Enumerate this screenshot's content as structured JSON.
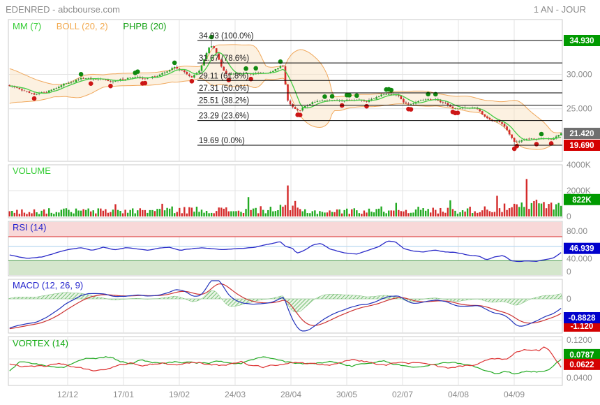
{
  "header": {
    "title": "EDENRED - abcbourse.com",
    "period": "1 AN - JOUR"
  },
  "colors": {
    "up": "#22aa22",
    "down": "#d42a2a",
    "wick": "#666666",
    "ma": "#44cc44",
    "boll_line": "#f0a85c",
    "boll_fill": "#fae3c3",
    "rsi_line": "#2a2ac8",
    "rsi_overbought_zone": "#f8d8d8",
    "rsi_oversold_zone": "#d4e6cc",
    "rsi_line_80": "#dd4444",
    "rsi_line_60": "#b9d9f0",
    "rsi_line_30": "#66aa66",
    "macd_line": "#2233bb",
    "signal_line": "#cc3333",
    "hist": "#57b357",
    "vortex_plus": "#22aa22",
    "vortex_minus": "#dd3333",
    "grid": "#e3e3e3",
    "border": "#c9c9c9",
    "axis_text": "#8c8c8c",
    "fib": "#000000"
  },
  "chart_data": {
    "type": "candlestick-multi-panel",
    "x_axis": {
      "dates": [
        "12/12",
        "17/01",
        "19/02",
        "24/03",
        "28/04",
        "30/05",
        "02/07",
        "04/08",
        "04/09"
      ]
    },
    "main": {
      "legend": [
        {
          "label": "MM (7)",
          "color": "#33cc33"
        },
        {
          "label": "BOLL (20, 2)",
          "color": "#f2a94e"
        },
        {
          "label": "PHPB (20)",
          "color": "#12a112"
        }
      ],
      "fib_levels": [
        {
          "price": 34.93,
          "label": "34.93  (100.0%)"
        },
        {
          "price": 31.67,
          "label": "31.67  (78.6%)"
        },
        {
          "price": 29.11,
          "label": "29.11  (61.8%)"
        },
        {
          "price": 27.31,
          "label": "27.31  (50.0%)"
        },
        {
          "price": 25.51,
          "label": "25.51  (38.2%)"
        },
        {
          "price": 23.29,
          "label": "23.29  (23.6%)"
        },
        {
          "price": 19.69,
          "label": "19.69  (0.0%)"
        }
      ],
      "axis_labels": [
        {
          "value": 35.0,
          "text": "35.000"
        },
        {
          "value": 30.0,
          "text": "30.000"
        },
        {
          "value": 25.0,
          "text": "25.000"
        }
      ],
      "badges": [
        {
          "text": "34.930",
          "value": 34.93,
          "bg": "#009a00"
        },
        {
          "text": "21.420",
          "value": 21.42,
          "bg": "#6f6f6f"
        },
        {
          "text": "19.690",
          "value": 19.69,
          "bg": "#d40000"
        }
      ],
      "last_price": 21.42,
      "price_keypoints": [
        [
          0,
          28.3
        ],
        [
          0.02,
          27.8
        ],
        [
          0.045,
          26.9
        ],
        [
          0.07,
          27.6
        ],
        [
          0.1,
          28.6
        ],
        [
          0.13,
          29.4
        ],
        [
          0.16,
          29.2
        ],
        [
          0.19,
          29.0
        ],
        [
          0.22,
          29.6
        ],
        [
          0.25,
          29.4
        ],
        [
          0.28,
          30.2
        ],
        [
          0.3,
          31.1
        ],
        [
          0.315,
          30.4
        ],
        [
          0.33,
          29.6
        ],
        [
          0.345,
          30.5
        ],
        [
          0.36,
          33.8
        ],
        [
          0.368,
          34.2
        ],
        [
          0.375,
          33.0
        ],
        [
          0.385,
          31.0
        ],
        [
          0.395,
          30.0
        ],
        [
          0.41,
          30.3
        ],
        [
          0.44,
          30.1
        ],
        [
          0.47,
          30.3
        ],
        [
          0.485,
          30.8
        ],
        [
          0.495,
          31.3
        ],
        [
          0.505,
          25.9
        ],
        [
          0.515,
          25.0
        ],
        [
          0.525,
          24.6
        ],
        [
          0.535,
          25.3
        ],
        [
          0.55,
          26.0
        ],
        [
          0.565,
          26.3
        ],
        [
          0.6,
          26.1
        ],
        [
          0.615,
          26.4
        ],
        [
          0.63,
          26.2
        ],
        [
          0.645,
          26.0
        ],
        [
          0.66,
          26.5
        ],
        [
          0.675,
          27.2
        ],
        [
          0.69,
          27.3
        ],
        [
          0.705,
          26.9
        ],
        [
          0.715,
          26.0
        ],
        [
          0.73,
          25.6
        ],
        [
          0.745,
          26.1
        ],
        [
          0.76,
          26.4
        ],
        [
          0.775,
          26.2
        ],
        [
          0.79,
          25.8
        ],
        [
          0.805,
          25.0
        ],
        [
          0.82,
          25.2
        ],
        [
          0.835,
          25.1
        ],
        [
          0.85,
          24.8
        ],
        [
          0.862,
          23.9
        ],
        [
          0.875,
          23.3
        ],
        [
          0.89,
          23.0
        ],
        [
          0.9,
          22.3
        ],
        [
          0.905,
          21.5
        ],
        [
          0.915,
          20.2
        ],
        [
          0.925,
          20.3
        ],
        [
          0.94,
          20.6
        ],
        [
          0.955,
          20.5
        ],
        [
          0.97,
          20.8
        ],
        [
          0.985,
          20.7
        ],
        [
          1,
          21.42
        ]
      ],
      "wick_overrides": [
        {
          "t": 0.364,
          "high": 34.93
        },
        {
          "t": 0.915,
          "low": 19.69
        }
      ]
    },
    "volume": {
      "title": "VOLUME",
      "title_color": "#33cc33",
      "axis_labels": [
        {
          "value": 4000,
          "text": "4000K"
        },
        {
          "value": 2000,
          "text": "2000K"
        },
        {
          "value": 0,
          "text": "0"
        }
      ],
      "badge": {
        "text": "822K",
        "value": 822,
        "bg": "#009a00"
      },
      "last_volume": 822,
      "base_keypoints": [
        [
          0,
          380
        ],
        [
          0.1,
          430
        ],
        [
          0.2,
          420
        ],
        [
          0.28,
          500
        ],
        [
          0.36,
          520
        ],
        [
          0.42,
          450
        ],
        [
          0.5,
          600
        ],
        [
          0.55,
          380
        ],
        [
          0.62,
          420
        ],
        [
          0.7,
          550
        ],
        [
          0.78,
          450
        ],
        [
          0.84,
          520
        ],
        [
          0.9,
          650
        ],
        [
          0.95,
          800
        ],
        [
          1,
          822
        ]
      ],
      "spikes": [
        [
          0.19,
          950,
          "r"
        ],
        [
          0.275,
          980,
          "r"
        ],
        [
          0.432,
          1500,
          "g"
        ],
        [
          0.505,
          2400,
          "r"
        ],
        [
          0.52,
          1200,
          "r"
        ],
        [
          0.7,
          1050,
          "g"
        ],
        [
          0.8,
          1250,
          "g"
        ],
        [
          0.885,
          1600,
          "r"
        ],
        [
          0.937,
          2900,
          "r"
        ],
        [
          0.955,
          1300,
          "r"
        ]
      ]
    },
    "rsi": {
      "title": "RSI (14)",
      "title_color": "#2222cc",
      "range": [
        0,
        100
      ],
      "levels": [
        {
          "value": 80,
          "color": "#dd4444"
        },
        {
          "value": 60,
          "color": "#b9d9f0"
        },
        {
          "value": 30,
          "color": "#66aa66"
        }
      ],
      "axis_labels": [
        {
          "value": 80,
          "text": "80.00"
        },
        {
          "value": 40,
          "text": "40.000"
        },
        {
          "value": 0,
          "text": "0"
        }
      ],
      "badge": {
        "text": "46.939",
        "value": 46.939,
        "bg": "#0000cc"
      },
      "last_value": 46.939,
      "keypoints": [
        [
          0,
          42
        ],
        [
          0.03,
          35
        ],
        [
          0.06,
          38
        ],
        [
          0.1,
          52
        ],
        [
          0.13,
          57
        ],
        [
          0.15,
          52
        ],
        [
          0.17,
          58
        ],
        [
          0.19,
          53
        ],
        [
          0.21,
          57
        ],
        [
          0.23,
          55
        ],
        [
          0.25,
          52
        ],
        [
          0.27,
          56
        ],
        [
          0.29,
          58
        ],
        [
          0.31,
          52
        ],
        [
          0.33,
          55
        ],
        [
          0.35,
          57
        ],
        [
          0.37,
          55
        ],
        [
          0.39,
          53
        ],
        [
          0.42,
          56
        ],
        [
          0.44,
          57
        ],
        [
          0.46,
          62
        ],
        [
          0.475,
          65
        ],
        [
          0.49,
          70
        ],
        [
          0.5,
          60
        ],
        [
          0.515,
          55
        ],
        [
          0.52,
          45
        ],
        [
          0.535,
          52
        ],
        [
          0.55,
          63
        ],
        [
          0.565,
          66
        ],
        [
          0.58,
          55
        ],
        [
          0.6,
          48
        ],
        [
          0.615,
          45
        ],
        [
          0.63,
          44
        ],
        [
          0.65,
          52
        ],
        [
          0.67,
          60
        ],
        [
          0.685,
          71
        ],
        [
          0.7,
          69
        ],
        [
          0.715,
          55
        ],
        [
          0.73,
          50
        ],
        [
          0.75,
          48
        ],
        [
          0.77,
          52
        ],
        [
          0.79,
          48
        ],
        [
          0.81,
          47
        ],
        [
          0.83,
          42
        ],
        [
          0.85,
          40
        ],
        [
          0.865,
          32
        ],
        [
          0.88,
          38
        ],
        [
          0.895,
          41
        ],
        [
          0.91,
          30
        ],
        [
          0.925,
          28
        ],
        [
          0.94,
          30
        ],
        [
          0.955,
          29
        ],
        [
          0.97,
          32
        ],
        [
          0.985,
          35
        ],
        [
          1,
          46.939
        ]
      ]
    },
    "macd": {
      "title": "MACD (12, 26, 9)",
      "title_color": "#2222cc",
      "params": [
        12,
        26,
        9
      ],
      "axis_labels": [
        {
          "value": 0,
          "text": "0"
        }
      ],
      "badges": [
        {
          "text": "-0.8828",
          "value": -0.8828,
          "bg": "#0000cc"
        },
        {
          "text": "-1.120",
          "value": -1.12,
          "bg": "#d40000"
        }
      ]
    },
    "vortex": {
      "title": "VORTEX (14)",
      "title_color": "#11aa11",
      "axis_labels": [
        {
          "value": 0.12,
          "text": "0.1200"
        },
        {
          "value": 0.04,
          "text": "0.0400"
        }
      ],
      "grid_levels": [
        0.12,
        0.08,
        0.04
      ],
      "badges": [
        {
          "text": "0.0787",
          "value": 0.0787,
          "bg": "#009a00"
        },
        {
          "text": "0.0622",
          "value": 0.0622,
          "bg": "#d40000"
        }
      ],
      "plus_keypoints": [
        [
          0,
          0.055
        ],
        [
          0.02,
          0.075
        ],
        [
          0.04,
          0.07
        ],
        [
          0.06,
          0.068
        ],
        [
          0.08,
          0.065
        ],
        [
          0.1,
          0.062
        ],
        [
          0.12,
          0.075
        ],
        [
          0.14,
          0.08
        ],
        [
          0.16,
          0.082
        ],
        [
          0.18,
          0.084
        ],
        [
          0.2,
          0.075
        ],
        [
          0.22,
          0.07
        ],
        [
          0.24,
          0.078
        ],
        [
          0.26,
          0.072
        ],
        [
          0.28,
          0.071
        ],
        [
          0.3,
          0.074
        ],
        [
          0.33,
          0.072
        ],
        [
          0.36,
          0.071
        ],
        [
          0.38,
          0.074
        ],
        [
          0.4,
          0.072
        ],
        [
          0.42,
          0.07
        ],
        [
          0.44,
          0.078
        ],
        [
          0.46,
          0.082
        ],
        [
          0.48,
          0.079
        ],
        [
          0.5,
          0.074
        ],
        [
          0.52,
          0.071
        ],
        [
          0.55,
          0.069
        ],
        [
          0.58,
          0.074
        ],
        [
          0.6,
          0.07
        ],
        [
          0.62,
          0.065
        ],
        [
          0.64,
          0.068
        ],
        [
          0.66,
          0.071
        ],
        [
          0.68,
          0.075
        ],
        [
          0.7,
          0.068
        ],
        [
          0.72,
          0.064
        ],
        [
          0.74,
          0.062
        ],
        [
          0.76,
          0.067
        ],
        [
          0.78,
          0.071
        ],
        [
          0.8,
          0.073
        ],
        [
          0.82,
          0.07
        ],
        [
          0.84,
          0.067
        ],
        [
          0.86,
          0.055
        ],
        [
          0.88,
          0.05
        ],
        [
          0.9,
          0.052
        ],
        [
          0.92,
          0.048
        ],
        [
          0.94,
          0.055
        ],
        [
          0.96,
          0.052
        ],
        [
          0.98,
          0.06
        ],
        [
          1,
          0.0787
        ]
      ],
      "minus_keypoints": [
        [
          0,
          0.068
        ],
        [
          0.02,
          0.064
        ],
        [
          0.04,
          0.066
        ],
        [
          0.06,
          0.064
        ],
        [
          0.08,
          0.068
        ],
        [
          0.1,
          0.07
        ],
        [
          0.12,
          0.062
        ],
        [
          0.14,
          0.058
        ],
        [
          0.16,
          0.055
        ],
        [
          0.18,
          0.06
        ],
        [
          0.2,
          0.066
        ],
        [
          0.22,
          0.072
        ],
        [
          0.24,
          0.064
        ],
        [
          0.26,
          0.069
        ],
        [
          0.28,
          0.071
        ],
        [
          0.3,
          0.066
        ],
        [
          0.32,
          0.07
        ],
        [
          0.34,
          0.073
        ],
        [
          0.36,
          0.068
        ],
        [
          0.38,
          0.066
        ],
        [
          0.4,
          0.07
        ],
        [
          0.42,
          0.074
        ],
        [
          0.44,
          0.066
        ],
        [
          0.46,
          0.063
        ],
        [
          0.48,
          0.066
        ],
        [
          0.5,
          0.07
        ],
        [
          0.52,
          0.073
        ],
        [
          0.54,
          0.07
        ],
        [
          0.56,
          0.068
        ],
        [
          0.58,
          0.065
        ],
        [
          0.6,
          0.072
        ],
        [
          0.62,
          0.078
        ],
        [
          0.64,
          0.075
        ],
        [
          0.66,
          0.072
        ],
        [
          0.68,
          0.066
        ],
        [
          0.7,
          0.072
        ],
        [
          0.74,
          0.071
        ],
        [
          0.76,
          0.068
        ],
        [
          0.78,
          0.063
        ],
        [
          0.8,
          0.061
        ],
        [
          0.82,
          0.065
        ],
        [
          0.84,
          0.068
        ],
        [
          0.86,
          0.075
        ],
        [
          0.88,
          0.08
        ],
        [
          0.9,
          0.078
        ],
        [
          0.92,
          0.095
        ],
        [
          0.94,
          0.1
        ],
        [
          0.96,
          0.098
        ],
        [
          0.97,
          0.105
        ],
        [
          0.98,
          0.095
        ],
        [
          1,
          0.0622
        ]
      ]
    }
  }
}
